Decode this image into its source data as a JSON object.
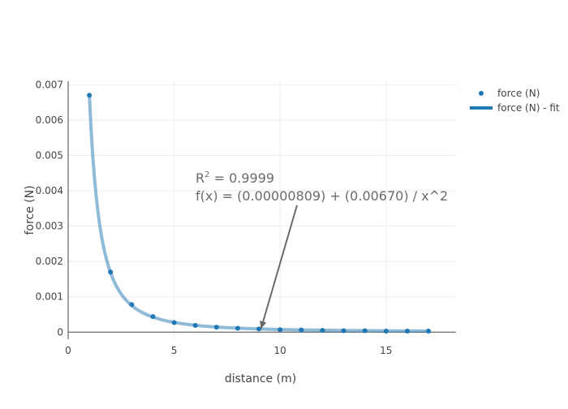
{
  "chart_data": {
    "type": "scatter",
    "xlabel": "distance (m)",
    "ylabel": "force (N)",
    "xlim": [
      0,
      18.3
    ],
    "ylim": [
      -0.0002,
      0.0071
    ],
    "x_ticks": [
      0,
      5,
      10,
      15
    ],
    "x_tick_labels": [
      "0",
      "5",
      "10",
      "15"
    ],
    "y_ticks": [
      0,
      0.001,
      0.002,
      0.003,
      0.004,
      0.005,
      0.006,
      0.007
    ],
    "y_tick_labels": [
      "0",
      "0.001",
      "0.002",
      "0.003",
      "0.004",
      "0.005",
      "0.006",
      "0.007"
    ],
    "grid": true,
    "legend_position": "top-right",
    "series": [
      {
        "name": "force (N)",
        "kind": "markers",
        "color": "#1f77b4",
        "x": [
          1,
          2,
          3,
          4,
          5,
          6,
          7,
          8,
          9,
          10,
          11,
          12,
          13,
          14,
          15,
          16,
          17
        ],
        "y": [
          0.0067,
          0.0017,
          0.00078,
          0.00044,
          0.00027,
          0.00019,
          0.00014,
          0.00011,
          9e-05,
          7e-05,
          6e-05,
          5e-05,
          4e-05,
          4e-05,
          3e-05,
          3e-05,
          3e-05
        ]
      },
      {
        "name": "force (N) - fit",
        "kind": "line",
        "color": "#1f77b4",
        "fit": {
          "a": 8.09e-06,
          "b": 0.0067,
          "form": "a + b / x^2",
          "x_from": 1,
          "x_to": 17
        }
      }
    ],
    "annotation": {
      "r2_prefix": "R",
      "r2_sup": "2",
      "r2_value": " = 0.9999",
      "equation": "f(x) = (0.00000809) + (0.00670) / x^2",
      "arrow_target_x": 9.1,
      "arrow_target_y": 0.0001,
      "color": "#6b6b6b"
    }
  }
}
